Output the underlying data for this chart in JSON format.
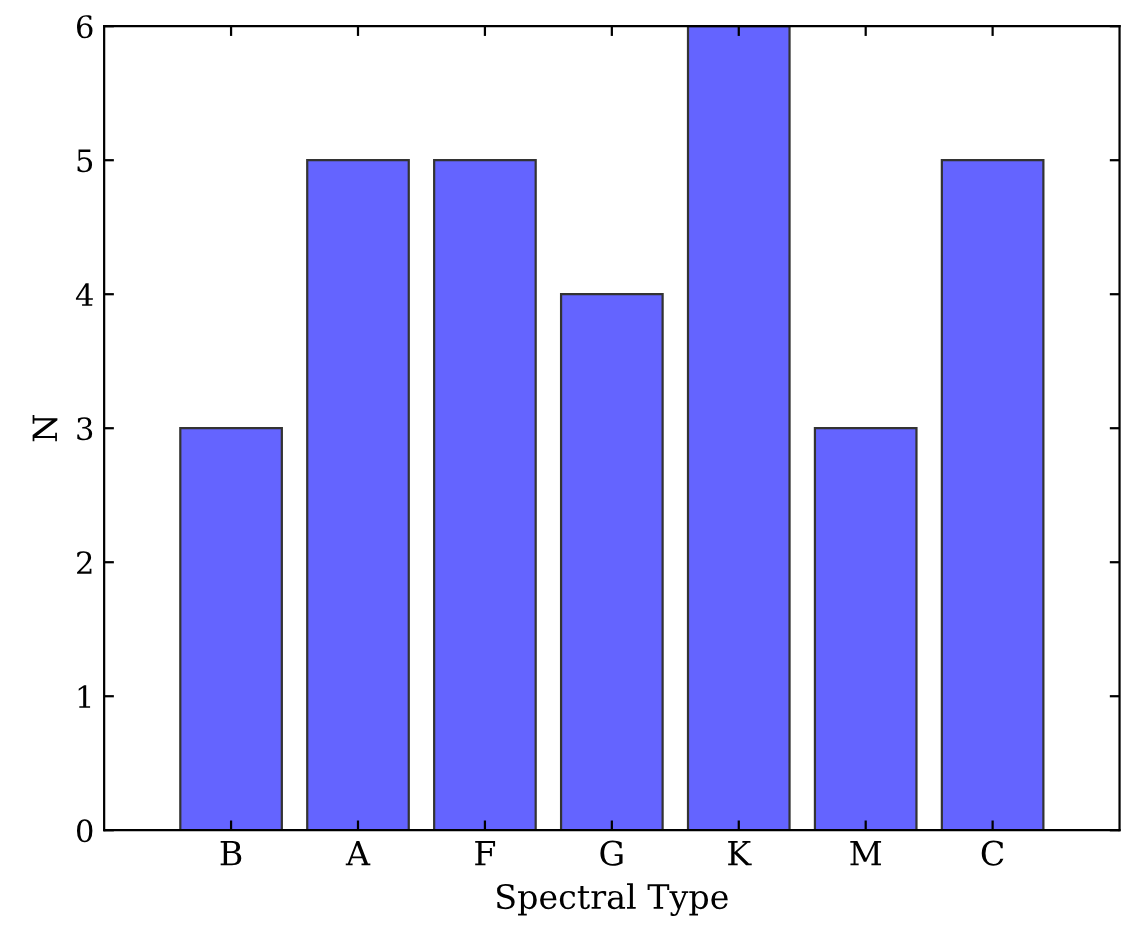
{
  "chart_data": {
    "type": "bar",
    "xlabel": "Spectral Type",
    "ylabel": "N",
    "categories": [
      "B",
      "A",
      "F",
      "G",
      "K",
      "M",
      "C"
    ],
    "values": [
      3,
      5,
      5,
      4,
      6,
      3,
      5
    ],
    "color": "#6464ff",
    "ylim": [
      0,
      6
    ],
    "yticks": [
      0,
      1,
      2,
      3,
      4,
      5,
      6
    ],
    "grid": false
  }
}
